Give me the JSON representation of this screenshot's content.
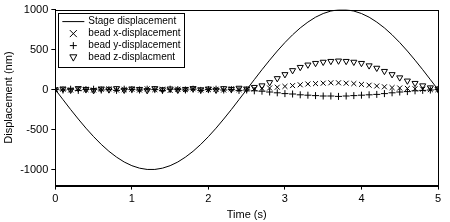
{
  "chart_data": {
    "type": "scatter",
    "x_label": "Time (s)",
    "y_label": "Displacement (nm)",
    "x": [
      0,
      0.1,
      0.2,
      0.3,
      0.4,
      0.5,
      0.6,
      0.7,
      0.8,
      0.9,
      1.0,
      1.1,
      1.2,
      1.3,
      1.4,
      1.5,
      1.6,
      1.7,
      1.8,
      1.9,
      2.0,
      2.1,
      2.2,
      2.3,
      2.4,
      2.5,
      2.6,
      2.7,
      2.8,
      2.9,
      3.0,
      3.1,
      3.2,
      3.3,
      3.4,
      3.5,
      3.6,
      3.7,
      3.8,
      3.9,
      4.0,
      4.1,
      4.2,
      4.3,
      4.4,
      4.5,
      4.6,
      4.7,
      4.8,
      4.9,
      5.0
    ],
    "series": [
      {
        "name": "Stage displacement",
        "type": "line",
        "line_style": "solid",
        "color": "#000000",
        "values": [
          0,
          -125,
          -249,
          -368,
          -482,
          -588,
          -685,
          -771,
          -844,
          -905,
          -951,
          -982,
          -998,
          -998,
          -982,
          -951,
          -905,
          -844,
          -771,
          -685,
          -588,
          -482,
          -368,
          -249,
          -125,
          0,
          125,
          249,
          368,
          482,
          588,
          685,
          771,
          844,
          905,
          951,
          982,
          998,
          998,
          982,
          951,
          905,
          844,
          771,
          685,
          588,
          482,
          368,
          249,
          125,
          0
        ]
      },
      {
        "name": "bead x-displacement",
        "type": "scatter",
        "marker": "x",
        "color": "#000000",
        "values": [
          0,
          5,
          -5,
          10,
          0,
          -5,
          5,
          10,
          -5,
          0,
          5,
          -5,
          10,
          0,
          5,
          -10,
          5,
          0,
          10,
          -5,
          0,
          5,
          -5,
          10,
          0,
          5,
          10,
          15,
          20,
          30,
          40,
          50,
          60,
          70,
          75,
          80,
          85,
          85,
          80,
          75,
          65,
          55,
          45,
          35,
          25,
          20,
          15,
          10,
          5,
          0,
          0
        ]
      },
      {
        "name": "bead y-displacement",
        "type": "scatter",
        "marker": "+",
        "color": "#000000",
        "values": [
          0,
          -5,
          5,
          -10,
          0,
          5,
          -5,
          0,
          -10,
          5,
          0,
          -5,
          5,
          0,
          -10,
          5,
          0,
          -5,
          5,
          -10,
          0,
          5,
          -5,
          0,
          -10,
          -5,
          -15,
          -20,
          -30,
          -40,
          -50,
          -55,
          -65,
          -70,
          -75,
          -80,
          -80,
          -85,
          -80,
          -75,
          -70,
          -65,
          -60,
          -50,
          -40,
          -30,
          -25,
          -15,
          -10,
          -5,
          0
        ]
      },
      {
        "name": "bead z-displacment",
        "type": "scatter",
        "marker": "triangle_down",
        "color": "#000000",
        "values": [
          0,
          10,
          -5,
          15,
          5,
          -10,
          10,
          0,
          15,
          -5,
          10,
          5,
          -10,
          15,
          0,
          10,
          -5,
          5,
          15,
          0,
          10,
          -5,
          15,
          5,
          20,
          10,
          30,
          50,
          90,
          140,
          190,
          240,
          280,
          310,
          330,
          345,
          355,
          360,
          355,
          345,
          330,
          300,
          270,
          230,
          190,
          150,
          110,
          80,
          50,
          25,
          10
        ]
      }
    ],
    "xlim": [
      0,
      5
    ],
    "xticks": [
      0,
      1,
      2,
      3,
      4,
      5
    ],
    "ylim": [
      -1200,
      1000
    ],
    "yticks": [
      -1000,
      -500,
      0,
      500,
      1000
    ],
    "grid": false,
    "legend": "upper left"
  }
}
